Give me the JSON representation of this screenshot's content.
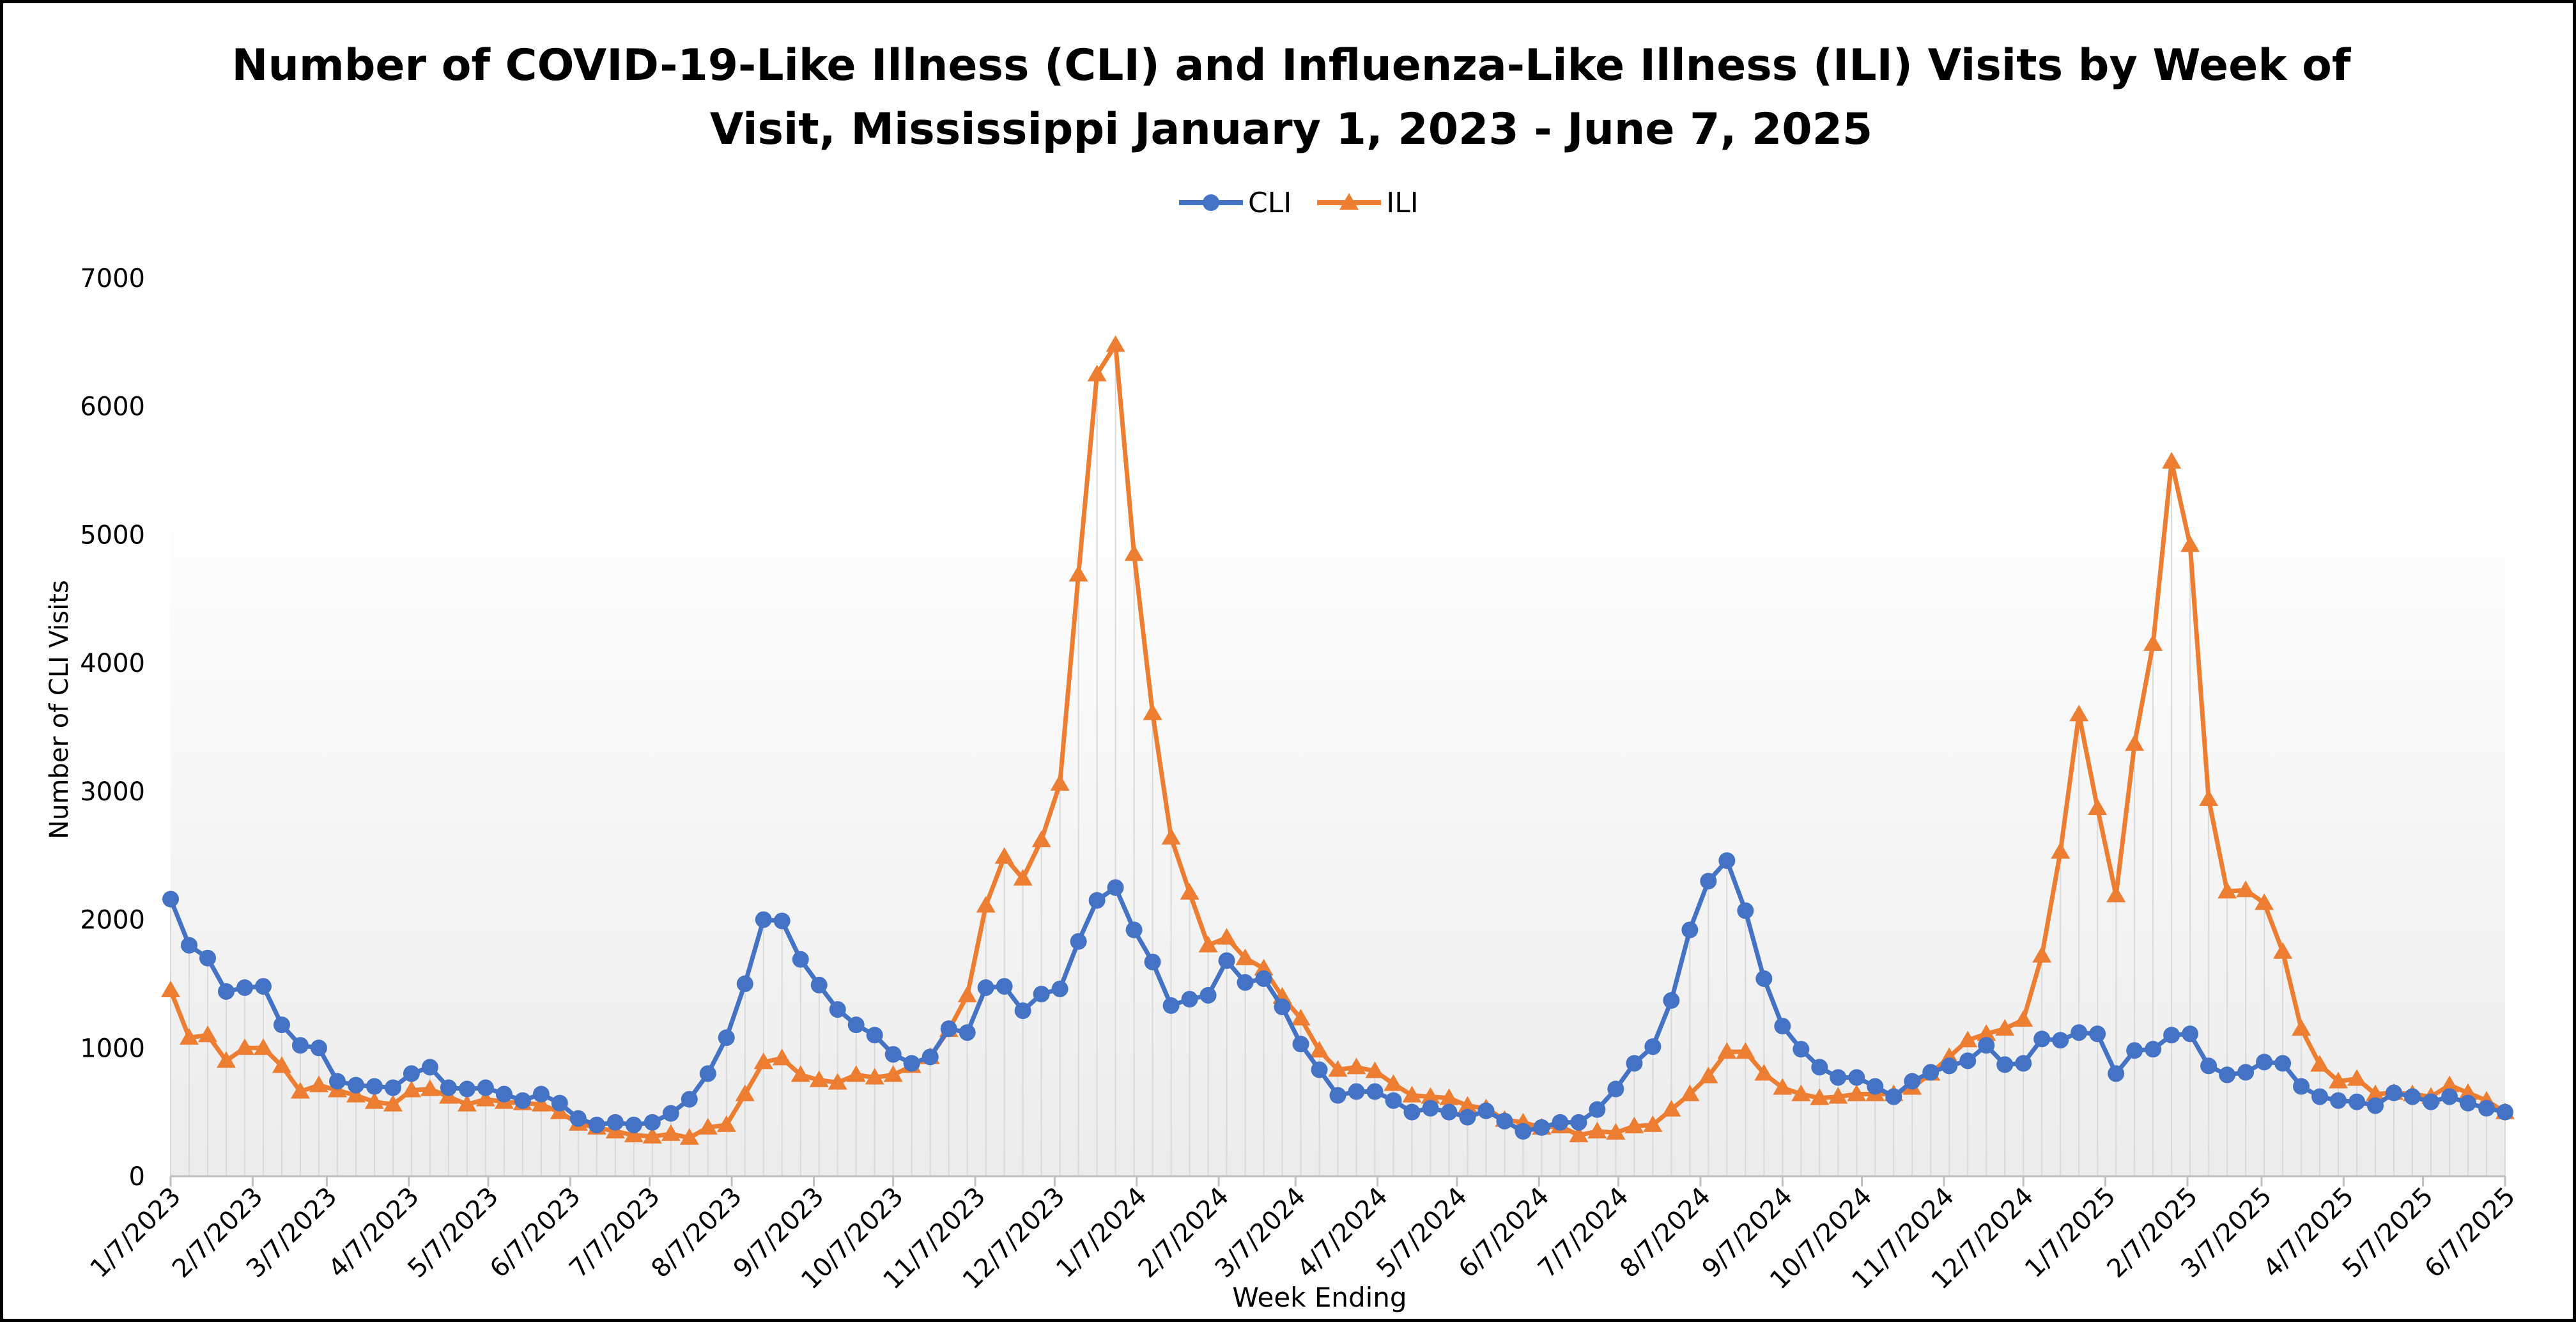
{
  "chart_data": {
    "type": "line",
    "title": "Number of COVID-19-Like Illness (CLI) and Influenza-Like Illness (ILI) Visits by Week of Visit, Mississippi January 1, 2023 - June 7, 2025",
    "title_lines": [
      "Number of COVID-19-Like Illness (CLI) and Influenza-Like Illness (ILI) Visits by Week of",
      "Visit, Mississippi January 1, 2023 - June 7, 2025"
    ],
    "xlabel": "Week Ending",
    "ylabel": "Number of CLI Visits",
    "ylim": [
      0,
      7000
    ],
    "yticks": [
      "0",
      "1000",
      "2000",
      "3000",
      "4000",
      "5000",
      "6000",
      "7000"
    ],
    "xlim": [
      "2023-01-07",
      "2025-06-07"
    ],
    "xticks": [
      "1/7/2023",
      "2/7/2023",
      "3/7/2023",
      "4/7/2023",
      "5/7/2023",
      "6/7/2023",
      "7/7/2023",
      "8/7/2023",
      "9/7/2023",
      "10/7/2023",
      "11/7/2023",
      "12/7/2023",
      "1/7/2024",
      "2/7/2024",
      "3/7/2024",
      "4/7/2024",
      "5/7/2024",
      "6/7/2024",
      "7/7/2024",
      "8/7/2024",
      "9/7/2024",
      "10/7/2024",
      "11/7/2024",
      "12/7/2024",
      "1/7/2025",
      "2/7/2025",
      "3/7/2025",
      "4/7/2025",
      "5/7/2025",
      "6/7/2025"
    ],
    "xtick_dates": [
      "2023-01-07",
      "2023-02-07",
      "2023-03-07",
      "2023-04-07",
      "2023-05-07",
      "2023-06-07",
      "2023-07-07",
      "2023-08-07",
      "2023-09-07",
      "2023-10-07",
      "2023-11-07",
      "2023-12-07",
      "2024-01-07",
      "2024-02-07",
      "2024-03-07",
      "2024-04-07",
      "2024-05-07",
      "2024-06-07",
      "2024-07-07",
      "2024-08-07",
      "2024-09-07",
      "2024-10-07",
      "2024-11-07",
      "2024-12-07",
      "2025-01-07",
      "2025-02-07",
      "2025-03-07",
      "2025-04-07",
      "2025-05-07",
      "2025-06-07"
    ],
    "x_start": "2023-01-07",
    "week_step_days": 7,
    "grid": "vertical drop lines at each week",
    "legend_position": "top-center",
    "series": [
      {
        "name": "CLI",
        "color": "#4472C4",
        "marker": "circle",
        "values": [
          2160,
          1800,
          1700,
          1440,
          1470,
          1480,
          1180,
          1020,
          1000,
          740,
          710,
          700,
          690,
          800,
          850,
          690,
          680,
          690,
          640,
          590,
          640,
          570,
          450,
          400,
          420,
          400,
          420,
          490,
          600,
          800,
          1080,
          1500,
          2000,
          1990,
          1690,
          1490,
          1300,
          1180,
          1100,
          950,
          880,
          930,
          1150,
          1120,
          1470,
          1480,
          1290,
          1420,
          1460,
          1830,
          2150,
          2250,
          1920,
          1670,
          1330,
          1380,
          1410,
          1680,
          1510,
          1540,
          1320,
          1030,
          830,
          630,
          660,
          660,
          590,
          500,
          530,
          500,
          460,
          510,
          430,
          350,
          380,
          420,
          420,
          520,
          680,
          880,
          1010,
          1370,
          1920,
          2300,
          2460,
          2070,
          1540,
          1170,
          990,
          850,
          770,
          770,
          700,
          620,
          740,
          810,
          860,
          900,
          1020,
          870,
          880,
          1070,
          1060,
          1120,
          1110,
          800,
          980,
          990,
          1100,
          1110,
          860,
          790,
          810,
          890,
          880,
          700,
          620,
          590,
          580,
          550,
          650,
          620,
          580,
          620,
          570,
          530,
          500
        ]
      },
      {
        "name": "ILI",
        "color": "#ED7D31",
        "marker": "triangle",
        "values": [
          1450,
          1080,
          1100,
          900,
          1000,
          1000,
          860,
          660,
          710,
          670,
          630,
          580,
          560,
          670,
          680,
          620,
          560,
          600,
          580,
          570,
          560,
          500,
          410,
          380,
          350,
          320,
          310,
          330,
          300,
          380,
          400,
          640,
          890,
          920,
          790,
          750,
          730,
          790,
          770,
          790,
          860,
          930,
          1140,
          1410,
          2110,
          2490,
          2320,
          2620,
          3060,
          4690,
          6250,
          6480,
          4850,
          3610,
          2640,
          2210,
          1800,
          1860,
          1700,
          1620,
          1400,
          1230,
          980,
          830,
          850,
          820,
          720,
          630,
          620,
          610,
          550,
          530,
          440,
          420,
          380,
          390,
          320,
          350,
          340,
          390,
          400,
          520,
          640,
          780,
          970,
          970,
          800,
          690,
          640,
          610,
          620,
          640,
          640,
          640,
          690,
          800,
          930,
          1060,
          1110,
          1150,
          1220,
          1720,
          2530,
          3600,
          2870,
          2190,
          3370,
          4150,
          5570,
          4920,
          2940,
          2220,
          2230,
          2130,
          1750,
          1150,
          870,
          740,
          760,
          640,
          650,
          640,
          620,
          710,
          650,
          590,
          500
        ]
      }
    ]
  }
}
